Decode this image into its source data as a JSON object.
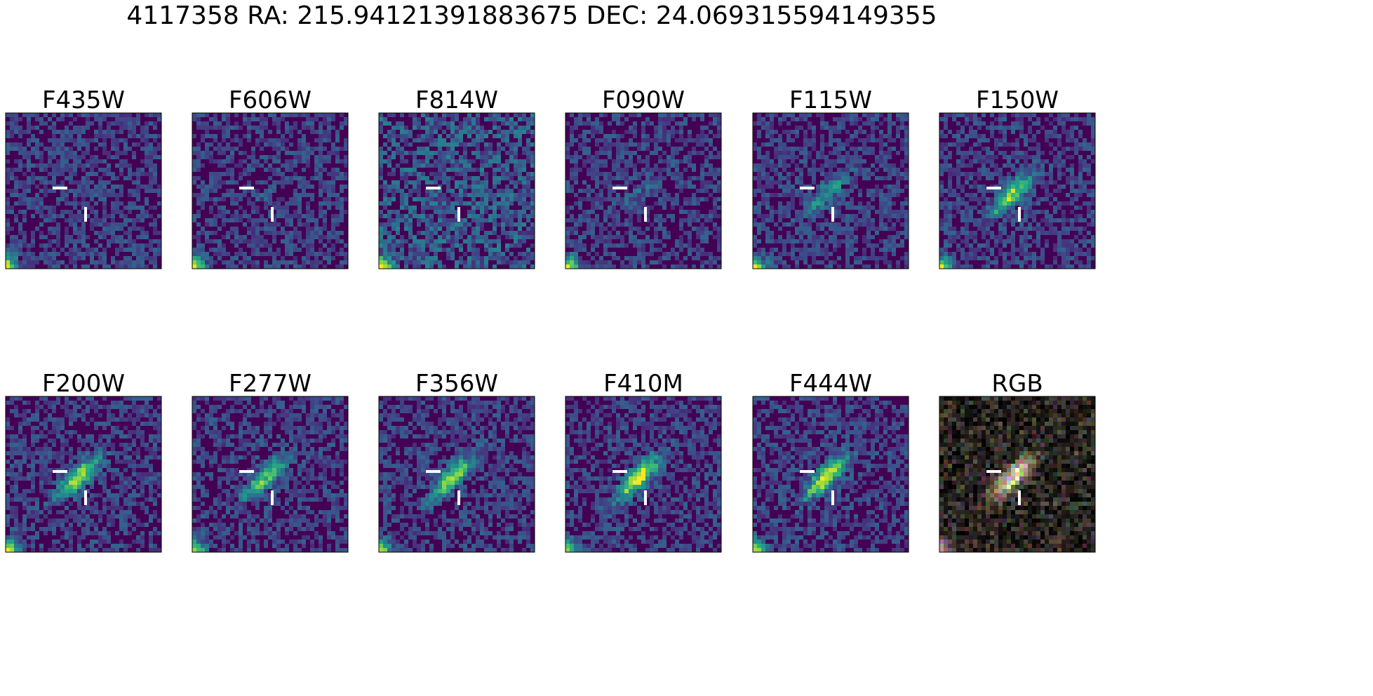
{
  "title": "4117358 RA: 215.94121391883675 DEC: 24.069315594149355",
  "panels": [
    "F435W",
    "F606W",
    "F814W",
    "F090W",
    "F115W",
    "F150W",
    "F200W",
    "F277W",
    "F356W",
    "F410M",
    "F444W",
    "RGB"
  ]
}
